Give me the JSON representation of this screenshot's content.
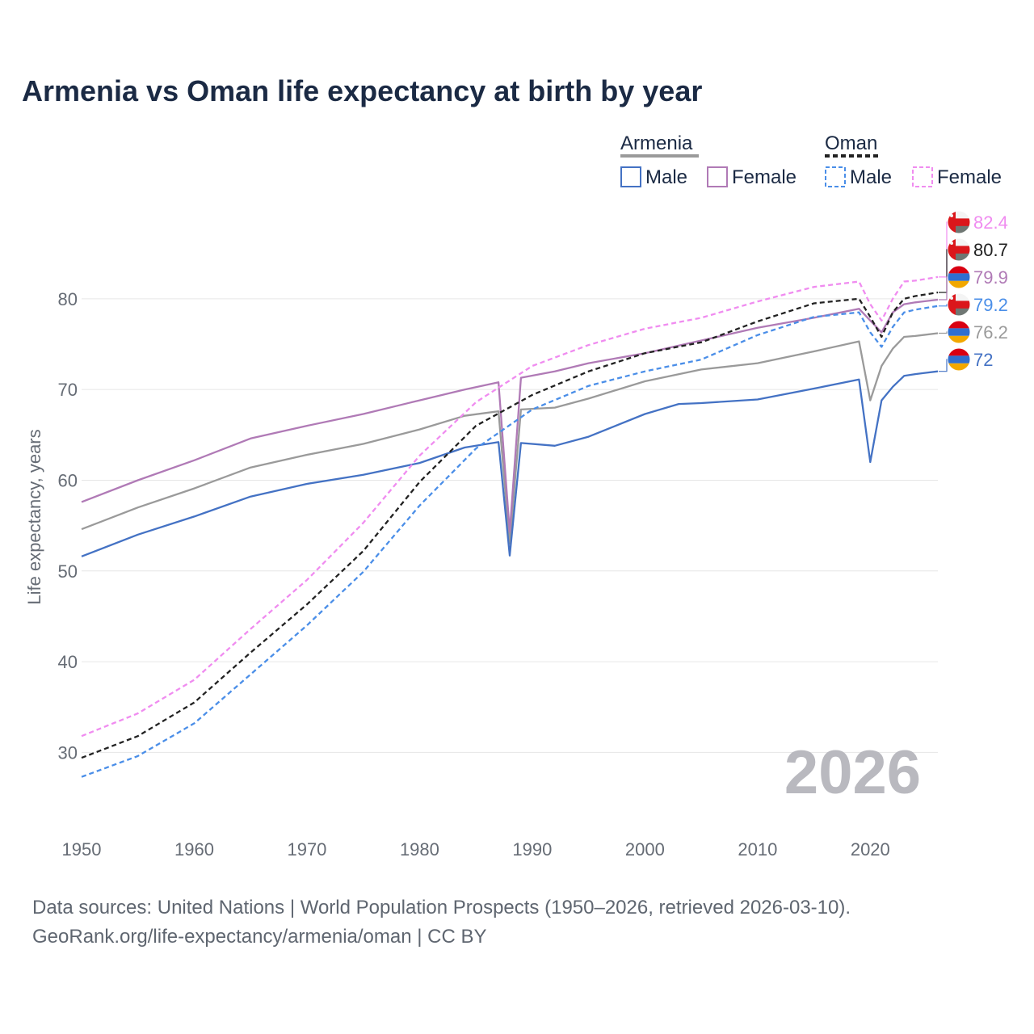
{
  "title": "Armenia vs Oman life expectancy at birth by year",
  "footer": {
    "line1": "Data sources: United Nations | World Population Prospects (1950–2026, retrieved 2026-03-10).",
    "line2": "GeoRank.org/life-expectancy/armenia/oman | CC BY"
  },
  "colors": {
    "armenia_total": "#9a9a9a",
    "armenia_male": "#4472c4",
    "armenia_female": "#b07ab6",
    "oman_total": "#222222",
    "oman_male": "#4a8ee8",
    "oman_female": "#f08cf0"
  },
  "legend": {
    "groups": [
      {
        "country": "Armenia",
        "male": "Male",
        "female": "Female"
      },
      {
        "country": "Oman",
        "male": "Male",
        "female": "Female"
      }
    ]
  },
  "chart_data": {
    "type": "line",
    "title": "Armenia vs Oman life expectancy at birth by year",
    "xlabel": "",
    "ylabel": "Life expectancy, years",
    "xlim": [
      1950,
      2026
    ],
    "ylim": [
      23,
      88
    ],
    "x_ticks": [
      1950,
      1960,
      1970,
      1980,
      1990,
      2000,
      2010,
      2020
    ],
    "y_ticks": [
      30,
      40,
      50,
      60,
      70,
      80
    ],
    "grid": true,
    "year_watermark": "2026",
    "series": [
      {
        "key": "armenia_total",
        "name": "Armenia",
        "style": "solid",
        "points": [
          [
            1950,
            54.6
          ],
          [
            1955,
            57.0
          ],
          [
            1960,
            59.1
          ],
          [
            1965,
            61.4
          ],
          [
            1970,
            62.8
          ],
          [
            1975,
            64.0
          ],
          [
            1980,
            65.6
          ],
          [
            1984,
            67.1
          ],
          [
            1987,
            67.6
          ],
          [
            1988,
            53.0
          ],
          [
            1989,
            67.8
          ],
          [
            1992,
            68.0
          ],
          [
            1995,
            69.0
          ],
          [
            2000,
            70.9
          ],
          [
            2005,
            72.2
          ],
          [
            2010,
            72.9
          ],
          [
            2015,
            74.2
          ],
          [
            2019,
            75.3
          ],
          [
            2020,
            68.8
          ],
          [
            2021,
            72.6
          ],
          [
            2022,
            74.5
          ],
          [
            2023,
            75.8
          ],
          [
            2024,
            75.9
          ],
          [
            2026,
            76.2
          ]
        ],
        "end_label": "76.2",
        "flag": "armenia"
      },
      {
        "key": "armenia_male",
        "name": "Armenia Male",
        "style": "solid",
        "points": [
          [
            1950,
            51.6
          ],
          [
            1955,
            54.0
          ],
          [
            1960,
            56.0
          ],
          [
            1965,
            58.2
          ],
          [
            1970,
            59.6
          ],
          [
            1975,
            60.6
          ],
          [
            1980,
            61.9
          ],
          [
            1984,
            63.6
          ],
          [
            1987,
            64.2
          ],
          [
            1988,
            51.7
          ],
          [
            1989,
            64.1
          ],
          [
            1992,
            63.8
          ],
          [
            1995,
            64.8
          ],
          [
            2000,
            67.3
          ],
          [
            2003,
            68.4
          ],
          [
            2005,
            68.5
          ],
          [
            2010,
            68.9
          ],
          [
            2015,
            70.1
          ],
          [
            2019,
            71.1
          ],
          [
            2020,
            62.0
          ],
          [
            2021,
            68.8
          ],
          [
            2022,
            70.3
          ],
          [
            2023,
            71.5
          ],
          [
            2024,
            71.7
          ],
          [
            2026,
            72.0
          ]
        ],
        "end_label": "72",
        "flag": "armenia"
      },
      {
        "key": "armenia_female",
        "name": "Armenia Female",
        "style": "solid",
        "points": [
          [
            1950,
            57.6
          ],
          [
            1955,
            60.0
          ],
          [
            1960,
            62.2
          ],
          [
            1965,
            64.6
          ],
          [
            1970,
            66.0
          ],
          [
            1975,
            67.3
          ],
          [
            1980,
            68.8
          ],
          [
            1984,
            70.0
          ],
          [
            1987,
            70.8
          ],
          [
            1988,
            54.3
          ],
          [
            1989,
            71.3
          ],
          [
            1992,
            72.0
          ],
          [
            1995,
            72.9
          ],
          [
            2000,
            74.0
          ],
          [
            2005,
            75.4
          ],
          [
            2010,
            76.8
          ],
          [
            2015,
            77.9
          ],
          [
            2019,
            78.9
          ],
          [
            2020,
            77.6
          ],
          [
            2021,
            76.3
          ],
          [
            2022,
            78.5
          ],
          [
            2023,
            79.4
          ],
          [
            2024,
            79.6
          ],
          [
            2026,
            79.9
          ]
        ],
        "end_label": "79.9",
        "flag": "armenia"
      },
      {
        "key": "oman_total",
        "name": "Oman",
        "style": "dashed",
        "points": [
          [
            1950,
            29.4
          ],
          [
            1955,
            31.8
          ],
          [
            1960,
            35.5
          ],
          [
            1965,
            41.0
          ],
          [
            1970,
            46.3
          ],
          [
            1975,
            52.2
          ],
          [
            1980,
            59.8
          ],
          [
            1985,
            66.0
          ],
          [
            1990,
            69.4
          ],
          [
            1995,
            72.0
          ],
          [
            2000,
            74.0
          ],
          [
            2005,
            75.2
          ],
          [
            2010,
            77.5
          ],
          [
            2015,
            79.5
          ],
          [
            2019,
            80.0
          ],
          [
            2020,
            78.0
          ],
          [
            2021,
            75.8
          ],
          [
            2022,
            78.5
          ],
          [
            2023,
            80.0
          ],
          [
            2024,
            80.3
          ],
          [
            2026,
            80.7
          ]
        ],
        "end_label": "80.7",
        "flag": "oman"
      },
      {
        "key": "oman_male",
        "name": "Oman Male",
        "style": "dashed",
        "points": [
          [
            1950,
            27.3
          ],
          [
            1955,
            29.6
          ],
          [
            1960,
            33.2
          ],
          [
            1965,
            38.6
          ],
          [
            1970,
            44.0
          ],
          [
            1975,
            49.9
          ],
          [
            1980,
            57.2
          ],
          [
            1985,
            63.5
          ],
          [
            1990,
            67.8
          ],
          [
            1995,
            70.4
          ],
          [
            2000,
            72.0
          ],
          [
            2005,
            73.3
          ],
          [
            2010,
            76.0
          ],
          [
            2015,
            78.0
          ],
          [
            2019,
            78.5
          ],
          [
            2020,
            76.3
          ],
          [
            2021,
            74.7
          ],
          [
            2022,
            76.9
          ],
          [
            2023,
            78.5
          ],
          [
            2024,
            78.8
          ],
          [
            2026,
            79.2
          ]
        ],
        "end_label": "79.2",
        "flag": "oman"
      },
      {
        "key": "oman_female",
        "name": "Oman Female",
        "style": "dashed",
        "points": [
          [
            1950,
            31.8
          ],
          [
            1955,
            34.3
          ],
          [
            1960,
            38.0
          ],
          [
            1965,
            43.6
          ],
          [
            1970,
            49.0
          ],
          [
            1975,
            55.3
          ],
          [
            1980,
            62.7
          ],
          [
            1985,
            68.6
          ],
          [
            1990,
            72.6
          ],
          [
            1995,
            74.9
          ],
          [
            2000,
            76.7
          ],
          [
            2005,
            77.9
          ],
          [
            2010,
            79.7
          ],
          [
            2015,
            81.3
          ],
          [
            2019,
            81.9
          ],
          [
            2020,
            79.4
          ],
          [
            2021,
            77.6
          ],
          [
            2022,
            80.0
          ],
          [
            2023,
            81.9
          ],
          [
            2024,
            82.0
          ],
          [
            2026,
            82.4
          ]
        ],
        "end_label": "82.4",
        "flag": "oman"
      }
    ]
  }
}
